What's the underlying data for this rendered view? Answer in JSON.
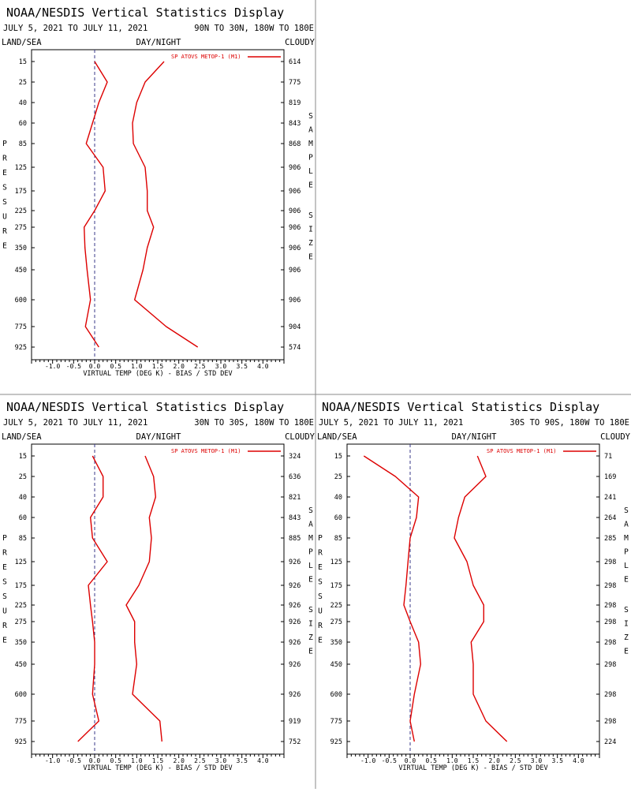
{
  "colors": {
    "series": "#dd0000",
    "axis": "#000000",
    "zero_line": "#3a3a8a",
    "divider": "#888888",
    "background": "#ffffff"
  },
  "panels": [
    {
      "title": "NOAA/NESDIS Vertical Statistics Display",
      "date_range": "JULY 5, 2021 TO JULY 11, 2021",
      "region": "90N TO 30N, 180W TO 180E",
      "top_left_label": "LAND/SEA",
      "top_center_label": "DAY/NIGHT",
      "top_right_label": "CLOUDY",
      "left_vertical_label": "PRESSURE",
      "right_vertical_label_1": "SAMPLE",
      "right_vertical_label_2": "SIZE",
      "xlabel": "VIRTUAL TEMP (DEG K) - BIAS / STD DEV",
      "x_tick_labels": [
        "-1.0",
        "-0.5",
        "0.0",
        "0.5",
        "1.0",
        "1.5",
        "2.0",
        "2.5",
        "3.0",
        "3.5",
        "4.0"
      ],
      "legend_label": "SP ATOVS METOP-1 (M1)",
      "chart_data": {
        "type": "line",
        "y_is_pressure_levels": true,
        "xlim": [
          -1.5,
          4.5
        ],
        "pressure_levels": [
          "15",
          "25",
          "40",
          "60",
          "85",
          "125",
          "175",
          "225",
          "275",
          "350",
          "450",
          "600",
          "775",
          "925"
        ],
        "sample_size": [
          "614",
          "775",
          "819",
          "843",
          "868",
          "906",
          "906",
          "906",
          "906",
          "906",
          "906",
          "906",
          "904",
          "574"
        ],
        "series": [
          {
            "role": "bias",
            "values": [
              0.0,
              0.3,
              0.1,
              -0.05,
              -0.2,
              0.2,
              0.25,
              0.0,
              -0.25,
              -0.23,
              -0.18,
              -0.1,
              -0.22,
              0.1
            ]
          },
          {
            "role": "std_dev",
            "values": [
              1.65,
              1.2,
              1.0,
              0.9,
              0.92,
              1.2,
              1.25,
              1.25,
              1.4,
              1.25,
              1.15,
              0.95,
              1.7,
              2.45
            ]
          }
        ]
      }
    },
    {
      "title": "NOAA/NESDIS Vertical Statistics Display",
      "date_range": "JULY 5, 2021 TO JULY 11, 2021",
      "region": "30N TO 30S, 180W TO 180E",
      "top_left_label": "LAND/SEA",
      "top_center_label": "DAY/NIGHT",
      "top_right_label": "CLOUDY",
      "left_vertical_label": "PRESSURE",
      "right_vertical_label_1": "SAMPLE",
      "right_vertical_label_2": "SIZE",
      "xlabel": "VIRTUAL TEMP (DEG K) - BIAS / STD DEV",
      "x_tick_labels": [
        "-1.0",
        "-0.5",
        "0.0",
        "0.5",
        "1.0",
        "1.5",
        "2.0",
        "2.5",
        "3.0",
        "3.5",
        "4.0"
      ],
      "legend_label": "SP ATOVS METOP-1 (M1)",
      "chart_data": {
        "type": "line",
        "y_is_pressure_levels": true,
        "xlim": [
          -1.5,
          4.5
        ],
        "pressure_levels": [
          "15",
          "25",
          "40",
          "60",
          "85",
          "125",
          "175",
          "225",
          "275",
          "350",
          "450",
          "600",
          "775",
          "925"
        ],
        "sample_size": [
          "324",
          "636",
          "821",
          "843",
          "885",
          "926",
          "926",
          "926",
          "926",
          "926",
          "926",
          "926",
          "919",
          "752"
        ],
        "series": [
          {
            "role": "bias",
            "values": [
              -0.05,
              0.2,
              0.2,
              -0.1,
              -0.05,
              0.3,
              -0.15,
              -0.1,
              -0.05,
              0.0,
              0.0,
              -0.05,
              0.1,
              -0.4
            ]
          },
          {
            "role": "std_dev",
            "values": [
              1.2,
              1.4,
              1.45,
              1.3,
              1.35,
              1.3,
              1.05,
              0.75,
              0.95,
              0.95,
              1.0,
              0.9,
              1.55,
              1.6
            ]
          }
        ]
      }
    },
    {
      "title": "NOAA/NESDIS Vertical Statistics Display",
      "date_range": "JULY 5, 2021 TO JULY 11, 2021",
      "region": "30S TO 90S, 180W TO 180E",
      "top_left_label": "LAND/SEA",
      "top_center_label": "DAY/NIGHT",
      "top_right_label": "CLOUDY",
      "left_vertical_label": "PRESSURE",
      "right_vertical_label_1": "SAMPLE",
      "right_vertical_label_2": "SIZE",
      "xlabel": "VIRTUAL TEMP (DEG K) - BIAS / STD DEV",
      "x_tick_labels": [
        "-1.0",
        "-0.5",
        "0.0",
        "0.5",
        "1.0",
        "1.5",
        "2.0",
        "2.5",
        "3.0",
        "3.5",
        "4.0"
      ],
      "legend_label": "SP ATOVS METOP-1 (M1)",
      "chart_data": {
        "type": "line",
        "y_is_pressure_levels": true,
        "xlim": [
          -1.5,
          4.5
        ],
        "pressure_levels": [
          "15",
          "25",
          "40",
          "60",
          "85",
          "125",
          "175",
          "225",
          "275",
          "350",
          "450",
          "600",
          "775",
          "925"
        ],
        "sample_size": [
          "71",
          "169",
          "241",
          "264",
          "285",
          "298",
          "298",
          "298",
          "298",
          "298",
          "298",
          "298",
          "298",
          "224"
        ],
        "series": [
          {
            "role": "bias",
            "values": [
              -1.1,
              -0.35,
              0.2,
              0.15,
              0.0,
              -0.05,
              -0.1,
              -0.15,
              0.0,
              0.2,
              0.25,
              0.1,
              0.0,
              0.1
            ]
          },
          {
            "role": "std_dev",
            "values": [
              1.6,
              1.8,
              1.3,
              1.15,
              1.05,
              1.35,
              1.5,
              1.75,
              1.75,
              1.45,
              1.5,
              1.5,
              1.8,
              2.3
            ]
          }
        ]
      }
    }
  ]
}
